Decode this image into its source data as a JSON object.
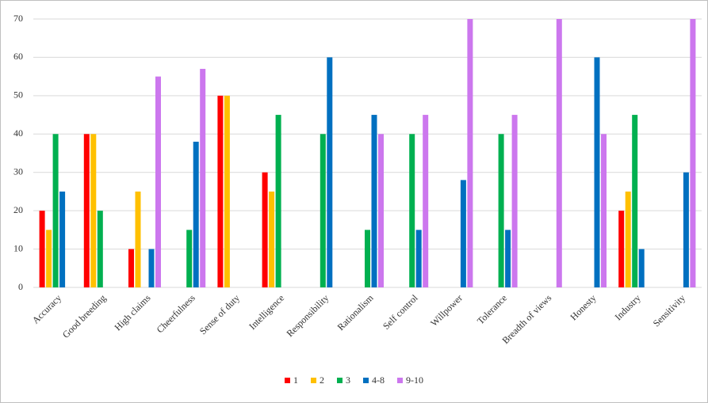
{
  "chart_data": {
    "type": "bar",
    "categories": [
      "Accuracy",
      "Good breeding",
      "High claims",
      "Cheerfulness",
      "Sense of duty",
      "Intelligence",
      "Responsibility",
      "Rationalism",
      "Self control",
      "Willpower",
      "Tolerance",
      "Breadth of views",
      "Honesty",
      "Industry",
      "Sensitivity"
    ],
    "series": [
      {
        "name": "1",
        "color": "#ff0000",
        "values": [
          20,
          40,
          10,
          0,
          50,
          30,
          0,
          0,
          0,
          0,
          0,
          0,
          0,
          20,
          0
        ]
      },
      {
        "name": "2",
        "color": "#ffc000",
        "values": [
          15,
          40,
          25,
          0,
          50,
          25,
          0,
          0,
          0,
          0,
          0,
          0,
          0,
          25,
          0
        ]
      },
      {
        "name": "3",
        "color": "#00b050",
        "values": [
          40,
          20,
          0,
          15,
          0,
          45,
          40,
          15,
          40,
          0,
          40,
          0,
          0,
          45,
          0
        ]
      },
      {
        "name": "4-8",
        "color": "#0070c0",
        "values": [
          25,
          0,
          10,
          38,
          0,
          0,
          60,
          45,
          15,
          28,
          15,
          0,
          60,
          10,
          30
        ]
      },
      {
        "name": "9-10",
        "color": "#cc77ee",
        "values": [
          0,
          0,
          55,
          57,
          0,
          0,
          0,
          40,
          45,
          70,
          45,
          70,
          40,
          0,
          70
        ]
      }
    ],
    "ylim": [
      0,
      70
    ],
    "yticks": [
      0,
      10,
      20,
      30,
      40,
      50,
      60,
      70
    ],
    "grid": true,
    "legend": "bottom"
  }
}
